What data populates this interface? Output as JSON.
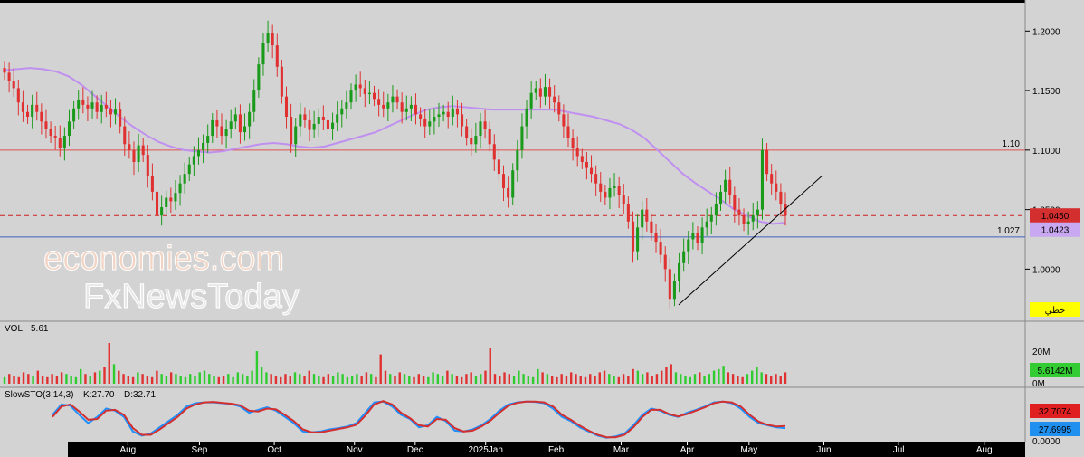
{
  "chart_data": {
    "type": "candlestick",
    "price": {
      "yticks": [
        1.2,
        1.15,
        1.1,
        1.05,
        1.0
      ],
      "ytick_labels": [
        "1.2000",
        "1.1500",
        "1.1000",
        "1.0500",
        "1.0000"
      ],
      "ylim": [
        0.96,
        1.22
      ],
      "closes": [
        1.165,
        1.158,
        1.152,
        1.14,
        1.132,
        1.128,
        1.138,
        1.132,
        1.124,
        1.118,
        1.112,
        1.11,
        1.102,
        1.112,
        1.124,
        1.135,
        1.142,
        1.138,
        1.135,
        1.14,
        1.132,
        1.138,
        1.135,
        1.13,
        1.134,
        1.12,
        1.105,
        1.1,
        1.09,
        1.104,
        1.096,
        1.078,
        1.065,
        1.045,
        1.052,
        1.06,
        1.057,
        1.064,
        1.072,
        1.08,
        1.088,
        1.095,
        1.1,
        1.106,
        1.112,
        1.125,
        1.12,
        1.112,
        1.118,
        1.124,
        1.13,
        1.115,
        1.12,
        1.132,
        1.15,
        1.172,
        1.19,
        1.198,
        1.188,
        1.17,
        1.145,
        1.128,
        1.105,
        1.12,
        1.13,
        1.125,
        1.117,
        1.122,
        1.128,
        1.125,
        1.118,
        1.123,
        1.13,
        1.135,
        1.14,
        1.15,
        1.155,
        1.152,
        1.147,
        1.148,
        1.143,
        1.138,
        1.135,
        1.14,
        1.145,
        1.14,
        1.132,
        1.135,
        1.138,
        1.13,
        1.126,
        1.12,
        1.124,
        1.128,
        1.13,
        1.132,
        1.128,
        1.135,
        1.13,
        1.12,
        1.11,
        1.105,
        1.112,
        1.124,
        1.118,
        1.105,
        1.092,
        1.08,
        1.068,
        1.06,
        1.083,
        1.1,
        1.12,
        1.135,
        1.148,
        1.152,
        1.145,
        1.153,
        1.145,
        1.14,
        1.13,
        1.12,
        1.11,
        1.102,
        1.095,
        1.09,
        1.085,
        1.08,
        1.072,
        1.065,
        1.06,
        1.068,
        1.07,
        1.062,
        1.055,
        1.04,
        1.015,
        1.035,
        1.05,
        1.04,
        1.03,
        1.023,
        1.012,
        1.0,
        0.975,
        0.99,
        1.005,
        1.015,
        1.025,
        1.03,
        1.022,
        1.035,
        1.04,
        1.045,
        1.055,
        1.065,
        1.075,
        1.062,
        1.05,
        1.045,
        1.038,
        1.04,
        1.045,
        1.05,
        1.1,
        1.08,
        1.072,
        1.065,
        1.055,
        1.045
      ],
      "opens_offset_note": "",
      "sma": [
        1.167,
        1.168,
        1.169,
        1.168,
        1.166,
        1.162,
        1.155,
        1.146,
        1.137,
        1.128,
        1.12,
        1.113,
        1.107,
        1.103,
        1.1,
        1.099,
        1.098,
        1.099,
        1.101,
        1.103,
        1.105,
        1.106,
        1.105,
        1.103,
        1.102,
        1.103,
        1.106,
        1.109,
        1.112,
        1.115,
        1.12,
        1.125,
        1.13,
        1.134,
        1.136,
        1.137,
        1.136,
        1.135,
        1.134,
        1.134,
        1.134,
        1.134,
        1.134,
        1.134,
        1.132,
        1.13,
        1.128,
        1.125,
        1.122,
        1.117,
        1.11,
        1.1,
        1.09,
        1.08,
        1.072,
        1.065,
        1.058,
        1.05,
        1.045,
        1.04,
        1.038,
        1.039
      ],
      "hlines": [
        {
          "value": 1.1,
          "label": "1.10",
          "color": "#e05050"
        },
        {
          "value": 1.045,
          "label": "",
          "color": "#d02020",
          "dashed": true
        },
        {
          "value": 1.027,
          "label": "1.027",
          "color": "#4060c0"
        }
      ],
      "trendline": {
        "from": [
          1.0,
          0.97
        ],
        "to": [
          1.0,
          1.078
        ]
      },
      "badges": [
        {
          "label": "1.0450",
          "color": "#d32f2f",
          "text_color": "#ffffff"
        },
        {
          "label": "1.0423",
          "color": "#c8a8f0",
          "text_color": "#000000"
        },
        {
          "label": "خطي",
          "color": "#ffff00",
          "text_color": "#000000"
        }
      ]
    },
    "volume": {
      "label": "VOL",
      "value": "5.61",
      "ytick_labels": [
        "20M",
        "0M"
      ],
      "badge": "5.6142M",
      "values": [
        4,
        6,
        5,
        4,
        7,
        6,
        5,
        8,
        5,
        4,
        6,
        5,
        7,
        6,
        5,
        4,
        9,
        6,
        5,
        7,
        8,
        10,
        25,
        12,
        8,
        6,
        5,
        4,
        7,
        6,
        5,
        4,
        8,
        6,
        5,
        7,
        6,
        5,
        4,
        6,
        5,
        7,
        8,
        6,
        5,
        4,
        5,
        6,
        4,
        7,
        6,
        5,
        8,
        20,
        10,
        7,
        6,
        5,
        4,
        6,
        5,
        7,
        6,
        5,
        8,
        6,
        5,
        4,
        6,
        5,
        7,
        6,
        4,
        5,
        6,
        5,
        7,
        6,
        4,
        18,
        8,
        6,
        5,
        7,
        6,
        5,
        4,
        6,
        5,
        4,
        7,
        6,
        5,
        8,
        6,
        5,
        4,
        6,
        7,
        5,
        6,
        8,
        22,
        6,
        5,
        7,
        6,
        5,
        8,
        6,
        5,
        4,
        9,
        7,
        6,
        5,
        4,
        6,
        5,
        7,
        6,
        5,
        4,
        6,
        5,
        7,
        8,
        6,
        5,
        4,
        6,
        5,
        9,
        8,
        6,
        7,
        5,
        6,
        8,
        10,
        12,
        7,
        6,
        5,
        4,
        6,
        7,
        5,
        6,
        8,
        9,
        11,
        7,
        6,
        5,
        4,
        6,
        8,
        10,
        7,
        6,
        5,
        6,
        5,
        7
      ]
    },
    "stochastic": {
      "label": "SlowSTO(3,14,3)",
      "k_label": "K:27.70",
      "d_label": "D:32.71",
      "k_badge": "27.6995",
      "d_badge": "32.7074",
      "ytick_labels": [
        "0.0000"
      ],
      "k": [
        60,
        85,
        82,
        60,
        40,
        55,
        75,
        70,
        55,
        20,
        10,
        15,
        30,
        45,
        60,
        80,
        88,
        90,
        90,
        88,
        86,
        80,
        65,
        72,
        78,
        70,
        55,
        40,
        20,
        18,
        20,
        25,
        28,
        32,
        40,
        65,
        90,
        92,
        80,
        60,
        50,
        30,
        35,
        55,
        45,
        22,
        20,
        25,
        35,
        50,
        70,
        85,
        90,
        92,
        91,
        88,
        75,
        55,
        45,
        30,
        20,
        10,
        5,
        8,
        15,
        35,
        60,
        75,
        70,
        60,
        55,
        65,
        72,
        80,
        90,
        92,
        88,
        75,
        55,
        40,
        35,
        30,
        28
      ],
      "d": [
        55,
        80,
        85,
        68,
        48,
        50,
        70,
        72,
        60,
        28,
        12,
        12,
        25,
        40,
        55,
        75,
        85,
        90,
        91,
        89,
        87,
        83,
        70,
        68,
        75,
        73,
        60,
        45,
        25,
        18,
        18,
        22,
        26,
        30,
        36,
        58,
        85,
        93,
        85,
        65,
        52,
        35,
        32,
        50,
        48,
        28,
        20,
        22,
        32,
        46,
        65,
        82,
        89,
        92,
        92,
        90,
        80,
        60,
        48,
        34,
        22,
        12,
        6,
        6,
        12,
        30,
        55,
        72,
        72,
        62,
        56,
        62,
        70,
        78,
        88,
        92,
        90,
        80,
        60,
        44,
        36,
        32,
        33
      ],
      "k_color": "#1e90ff",
      "d_color": "#d32f2f"
    },
    "xaxis": {
      "labels": [
        "Aug",
        "Sep",
        "Oct",
        "Nov",
        "Dec",
        "2025Jan",
        "Feb",
        "Mar",
        "Apr",
        "May",
        "Jun",
        "Jul",
        "Aug"
      ],
      "label_positions": [
        0.118,
        0.184,
        0.253,
        0.327,
        0.383,
        0.448,
        0.513,
        0.573,
        0.634,
        0.691,
        0.76,
        0.829,
        0.908
      ]
    },
    "watermark": {
      "line1": "economies.com",
      "line2": "FxNewsToday"
    }
  }
}
